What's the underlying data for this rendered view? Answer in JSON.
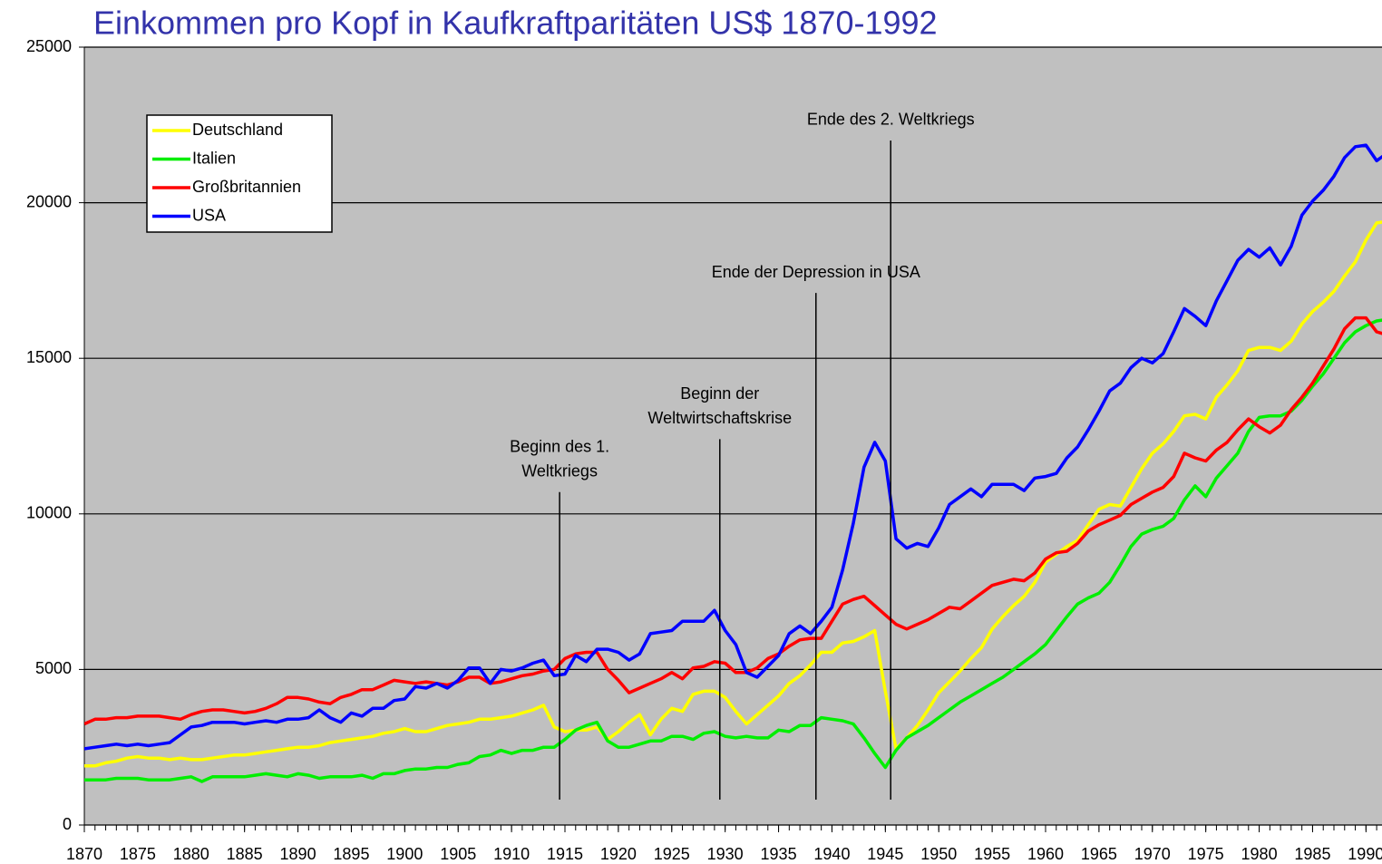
{
  "chart_data": {
    "type": "line",
    "title": "Einkommen pro Kopf in Kaufkraftparitäten US$ 1870-1992",
    "x": [
      1870,
      1871,
      1872,
      1873,
      1874,
      1875,
      1876,
      1877,
      1878,
      1879,
      1880,
      1881,
      1882,
      1883,
      1884,
      1885,
      1886,
      1887,
      1888,
      1889,
      1890,
      1891,
      1892,
      1893,
      1894,
      1895,
      1896,
      1897,
      1898,
      1899,
      1900,
      1901,
      1902,
      1903,
      1904,
      1905,
      1906,
      1907,
      1908,
      1909,
      1910,
      1911,
      1912,
      1913,
      1914,
      1915,
      1916,
      1917,
      1918,
      1919,
      1920,
      1921,
      1922,
      1923,
      1924,
      1925,
      1926,
      1927,
      1928,
      1929,
      1930,
      1931,
      1932,
      1933,
      1934,
      1935,
      1936,
      1937,
      1938,
      1939,
      1940,
      1941,
      1942,
      1943,
      1944,
      1945,
      1946,
      1947,
      1948,
      1949,
      1950,
      1951,
      1952,
      1953,
      1954,
      1955,
      1956,
      1957,
      1958,
      1959,
      1960,
      1961,
      1962,
      1963,
      1964,
      1965,
      1966,
      1967,
      1968,
      1969,
      1970,
      1971,
      1972,
      1973,
      1974,
      1975,
      1976,
      1977,
      1978,
      1979,
      1980,
      1981,
      1982,
      1983,
      1984,
      1985,
      1986,
      1987,
      1988,
      1989,
      1990,
      1991,
      1992
    ],
    "series": [
      {
        "name": "Deutschland",
        "color": "#ffff00",
        "values": [
          1900,
          1900,
          2000,
          2050,
          2150,
          2200,
          2150,
          2150,
          2100,
          2150,
          2100,
          2100,
          2150,
          2200,
          2250,
          2250,
          2300,
          2350,
          2400,
          2450,
          2500,
          2500,
          2550,
          2650,
          2700,
          2750,
          2800,
          2850,
          2950,
          3000,
          3100,
          3000,
          3000,
          3100,
          3200,
          3250,
          3300,
          3400,
          3400,
          3450,
          3500,
          3600,
          3700,
          3850,
          3150,
          3000,
          3050,
          3050,
          3150,
          2750,
          3000,
          3300,
          3550,
          2900,
          3400,
          3750,
          3650,
          4200,
          4300,
          4300,
          4100,
          3650,
          3250,
          3550,
          3850,
          4150,
          4550,
          4800,
          5150,
          5550,
          5550,
          5850,
          5900,
          6050,
          6250,
          4300,
          2450,
          2800,
          3200,
          3700,
          4250,
          4600,
          4950,
          5350,
          5700,
          6300,
          6700,
          7050,
          7350,
          7800,
          8450,
          8700,
          8950,
          9150,
          9650,
          10150,
          10300,
          10250,
          10850,
          11450,
          11950,
          12250,
          12650,
          13150,
          13200,
          13050,
          13750,
          14150,
          14600,
          15250,
          15350,
          15350,
          15250,
          15550,
          16100,
          16500,
          16800,
          17150,
          17650,
          18100,
          18800,
          19350,
          19400
        ]
      },
      {
        "name": "Italien",
        "color": "#00ee00",
        "values": [
          1450,
          1450,
          1450,
          1500,
          1500,
          1500,
          1450,
          1450,
          1450,
          1500,
          1550,
          1400,
          1550,
          1550,
          1550,
          1550,
          1600,
          1650,
          1600,
          1550,
          1650,
          1600,
          1500,
          1550,
          1550,
          1550,
          1600,
          1500,
          1650,
          1650,
          1750,
          1800,
          1800,
          1850,
          1850,
          1950,
          2000,
          2200,
          2250,
          2400,
          2300,
          2400,
          2400,
          2500,
          2500,
          2750,
          3050,
          3200,
          3300,
          2700,
          2500,
          2500,
          2600,
          2700,
          2700,
          2850,
          2850,
          2750,
          2950,
          3000,
          2850,
          2800,
          2850,
          2800,
          2800,
          3050,
          3000,
          3200,
          3200,
          3450,
          3400,
          3350,
          3250,
          2800,
          2300,
          1850,
          2400,
          2800,
          3000,
          3200,
          3450,
          3700,
          3950,
          4150,
          4350,
          4550,
          4750,
          5000,
          5250,
          5500,
          5800,
          6250,
          6700,
          7100,
          7300,
          7450,
          7800,
          8350,
          8950,
          9350,
          9500,
          9600,
          9850,
          10450,
          10900,
          10550,
          11150,
          11550,
          11950,
          12650,
          13100,
          13150,
          13150,
          13300,
          13650,
          14100,
          14500,
          15000,
          15500,
          15850,
          16050,
          16200,
          16250
        ]
      },
      {
        "name": "Großbritannien",
        "color": "#ff0000",
        "values": [
          3250,
          3400,
          3400,
          3450,
          3450,
          3500,
          3500,
          3500,
          3450,
          3400,
          3550,
          3650,
          3700,
          3700,
          3650,
          3600,
          3650,
          3750,
          3900,
          4100,
          4100,
          4050,
          3950,
          3900,
          4100,
          4200,
          4350,
          4350,
          4500,
          4650,
          4600,
          4550,
          4600,
          4550,
          4500,
          4600,
          4750,
          4750,
          4550,
          4600,
          4700,
          4800,
          4850,
          4950,
          5000,
          5350,
          5500,
          5550,
          5550,
          5000,
          4650,
          4250,
          4400,
          4550,
          4700,
          4900,
          4700,
          5050,
          5100,
          5250,
          5200,
          4900,
          4900,
          5050,
          5350,
          5500,
          5750,
          5950,
          6000,
          6000,
          6550,
          7100,
          7250,
          7350,
          7050,
          6750,
          6450,
          6300,
          6450,
          6600,
          6800,
          7000,
          6950,
          7200,
          7450,
          7700,
          7800,
          7900,
          7850,
          8100,
          8550,
          8750,
          8800,
          9050,
          9450,
          9650,
          9800,
          9950,
          10300,
          10500,
          10700,
          10850,
          11200,
          11950,
          11800,
          11700,
          12050,
          12300,
          12700,
          13050,
          12800,
          12600,
          12850,
          13350,
          13750,
          14200,
          14750,
          15300,
          15950,
          16300,
          16300,
          15850,
          15750
        ]
      },
      {
        "name": "USA",
        "color": "#0000ff",
        "values": [
          2450,
          2500,
          2550,
          2600,
          2550,
          2600,
          2550,
          2600,
          2650,
          2900,
          3150,
          3200,
          3300,
          3300,
          3300,
          3250,
          3300,
          3350,
          3300,
          3400,
          3400,
          3450,
          3700,
          3450,
          3300,
          3600,
          3500,
          3750,
          3750,
          4000,
          4050,
          4450,
          4400,
          4550,
          4400,
          4650,
          5050,
          5050,
          4550,
          5000,
          4950,
          5050,
          5200,
          5300,
          4800,
          4850,
          5450,
          5250,
          5650,
          5650,
          5550,
          5300,
          5500,
          6150,
          6200,
          6250,
          6550,
          6550,
          6550,
          6900,
          6250,
          5800,
          4900,
          4750,
          5100,
          5450,
          6150,
          6400,
          6150,
          6550,
          7000,
          8200,
          9700,
          11500,
          12300,
          11700,
          9200,
          8900,
          9050,
          8950,
          9550,
          10300,
          10550,
          10800,
          10550,
          10950,
          10950,
          10950,
          10750,
          11150,
          11200,
          11300,
          11800,
          12150,
          12700,
          13300,
          13950,
          14200,
          14700,
          15000,
          14850,
          15150,
          15850,
          16600,
          16350,
          16050,
          16850,
          17500,
          18150,
          18500,
          18250,
          18550,
          18000,
          18600,
          19600,
          20050,
          20400,
          20850,
          21450,
          21800,
          21850,
          21350,
          21600
        ]
      }
    ],
    "annotations": [
      {
        "text": [
          "Beginn des 1.",
          "Weltkriegs"
        ],
        "x": 1914.5,
        "y": 10700
      },
      {
        "text": [
          "Beginn der",
          "Weltwirtschaftskrise"
        ],
        "x": 1929.5,
        "y": 12400
      },
      {
        "text": [
          "Ende der Depression in USA"
        ],
        "x": 1938.5,
        "y": 17100
      },
      {
        "text": [
          "Ende des 2. Weltkriegs"
        ],
        "x": 1945.5,
        "y": 22000
      }
    ],
    "xlim": [
      1870,
      1991.5
    ],
    "xticks": [
      1870,
      1875,
      1880,
      1885,
      1890,
      1895,
      1900,
      1905,
      1910,
      1915,
      1920,
      1925,
      1930,
      1935,
      1940,
      1945,
      1950,
      1955,
      1960,
      1965,
      1970,
      1975,
      1980,
      1985,
      1990
    ],
    "ylim": [
      0,
      25000
    ],
    "yticks": [
      0,
      5000,
      10000,
      15000,
      20000,
      25000
    ],
    "grid": true,
    "legend": "top-left"
  }
}
